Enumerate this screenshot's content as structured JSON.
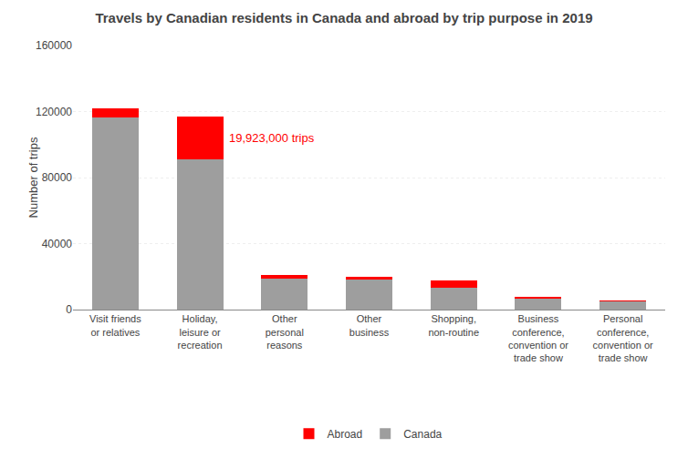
{
  "chart_data": {
    "type": "bar",
    "stacked": true,
    "title": "Travels by Canadian residents in Canada and abroad by trip purpose in 2019",
    "ylabel": "Number of trips",
    "categories": [
      "Visit friends\nor relatives",
      "Holiday,\nleisure or\nrecreation",
      "Other\npersonal\nreasons",
      "Other\nbusiness",
      "Shopping,\nnon-routine",
      "Business\nconference,\nconvention or\ntrade show",
      "Personal\nconference,\nconvention or\ntrade show"
    ],
    "series": [
      {
        "name": "Canada",
        "color": "#9e9e9e",
        "values": [
          116500,
          91000,
          19000,
          18000,
          13000,
          7000,
          5000
        ]
      },
      {
        "name": "Abroad",
        "color": "#ff0000",
        "values": [
          5500,
          26000,
          2000,
          2000,
          4500,
          1000,
          500
        ]
      }
    ],
    "annotations": [
      {
        "text": "19,923,000 trips",
        "color": "#ff0000"
      }
    ],
    "ylim": [
      0,
      160000
    ],
    "yticks": [
      0,
      40000,
      80000,
      120000,
      160000
    ],
    "grid": true,
    "legend": "bottom"
  }
}
